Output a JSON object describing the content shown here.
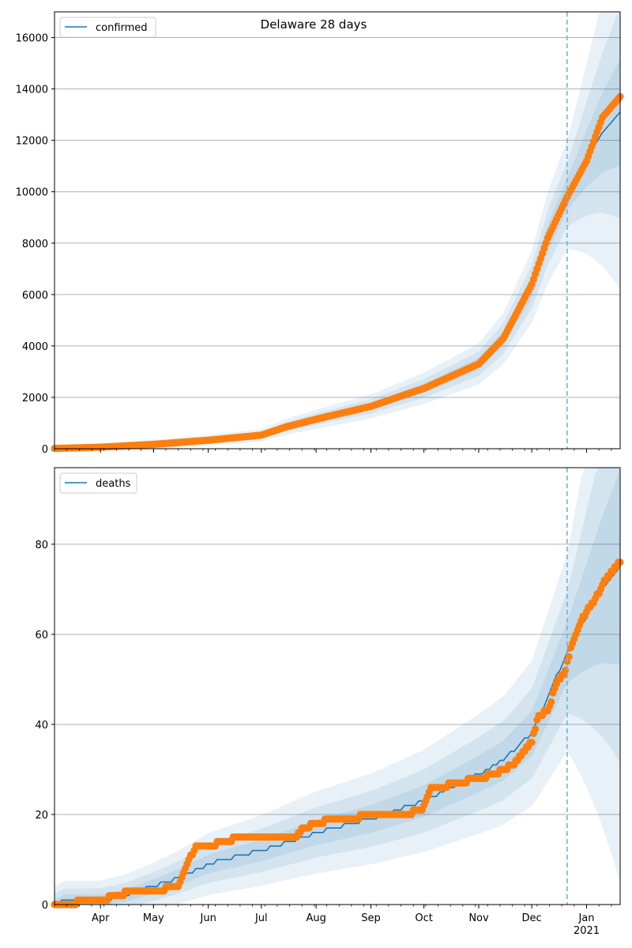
{
  "figure": {
    "title": "Delaware 28 days",
    "colors": {
      "model_line": "#1f77b4",
      "band": "#1f77b4",
      "observed": "#ff7f0e",
      "grid": "#b0b0b0",
      "vline": "#7ab0d4"
    }
  },
  "x_axis": {
    "month_labels": [
      "Apr",
      "May",
      "Jun",
      "Jul",
      "Aug",
      "Sep",
      "Oct",
      "Nov",
      "Dec",
      "Jan"
    ],
    "year_label": "2021",
    "start_date": "2020-03-06",
    "end_date": "2021-01-20",
    "forecast_date": "2020-12-21"
  },
  "chart_data": [
    {
      "type": "line",
      "name": "confirmed",
      "legend": "confirmed",
      "yticks": [
        0,
        2000,
        4000,
        6000,
        8000,
        10000,
        12000,
        14000,
        16000
      ],
      "ylim": [
        0,
        17000
      ],
      "grid": true,
      "legend_position": "top-left",
      "model_line": {
        "x": [
          "2020-03-06",
          "2020-04-01",
          "2020-05-01",
          "2020-06-01",
          "2020-07-01",
          "2020-07-15",
          "2020-08-01",
          "2020-09-01",
          "2020-10-01",
          "2020-11-01",
          "2020-11-15",
          "2020-12-01",
          "2020-12-10",
          "2020-12-21",
          "2021-01-01",
          "2021-01-10",
          "2021-01-20"
        ],
        "y": [
          10,
          60,
          170,
          330,
          520,
          850,
          1150,
          1650,
          2350,
          3300,
          4300,
          6300,
          8200,
          9900,
          11300,
          12300,
          13100
        ]
      },
      "observed": {
        "x": [
          "2020-03-06",
          "2020-04-01",
          "2020-05-01",
          "2020-06-01",
          "2020-07-01",
          "2020-07-15",
          "2020-08-01",
          "2020-09-01",
          "2020-10-01",
          "2020-11-01",
          "2020-11-15",
          "2020-12-01",
          "2020-12-10",
          "2020-12-21",
          "2021-01-01",
          "2021-01-10",
          "2021-01-20"
        ],
        "y": [
          10,
          60,
          170,
          330,
          530,
          850,
          1150,
          1650,
          2350,
          3300,
          4300,
          6400,
          8200,
          9800,
          11200,
          12900,
          13700
        ]
      }
    },
    {
      "type": "line",
      "name": "deaths",
      "legend": "deaths",
      "yticks": [
        0,
        20,
        40,
        60,
        80
      ],
      "ylim": [
        0,
        97
      ],
      "grid": true,
      "legend_position": "top-left",
      "model_line": {
        "x": [
          "2020-03-06",
          "2020-03-12",
          "2020-04-01",
          "2020-04-15",
          "2020-05-01",
          "2020-05-15",
          "2020-06-01",
          "2020-07-01",
          "2020-08-01",
          "2020-09-01",
          "2020-10-01",
          "2020-11-01",
          "2020-11-15",
          "2020-12-01",
          "2020-12-10",
          "2020-12-21",
          "2021-01-01",
          "2021-01-10",
          "2021-01-20"
        ],
        "y": [
          0,
          1,
          1,
          2,
          4,
          6,
          9,
          12,
          16,
          19,
          23,
          29,
          32,
          38,
          46,
          56,
          64,
          70,
          75
        ]
      },
      "observed": {
        "x": [
          "2020-03-06",
          "2020-04-01",
          "2020-04-10",
          "2020-04-20",
          "2020-05-01",
          "2020-05-15",
          "2020-05-20",
          "2020-05-25",
          "2020-06-01",
          "2020-06-10",
          "2020-06-20",
          "2020-07-01",
          "2020-07-20",
          "2020-07-25",
          "2020-08-01",
          "2020-08-10",
          "2020-08-20",
          "2020-09-01",
          "2020-09-20",
          "2020-09-30",
          "2020-10-05",
          "2020-10-10",
          "2020-10-20",
          "2020-11-01",
          "2020-11-10",
          "2020-11-20",
          "2020-12-01",
          "2020-12-05",
          "2020-12-10",
          "2020-12-15",
          "2020-12-20",
          "2020-12-24",
          "2020-12-28",
          "2021-01-01",
          "2021-01-05",
          "2021-01-10",
          "2021-01-15",
          "2021-01-20"
        ],
        "y": [
          0,
          1,
          2,
          3,
          3,
          4,
          9,
          13,
          13,
          14,
          15,
          15,
          15,
          17,
          18,
          19,
          19,
          20,
          20,
          21,
          26,
          26,
          27,
          28,
          29,
          31,
          36,
          42,
          43,
          49,
          52,
          58,
          62,
          65,
          67,
          71,
          74,
          76
        ]
      }
    }
  ]
}
